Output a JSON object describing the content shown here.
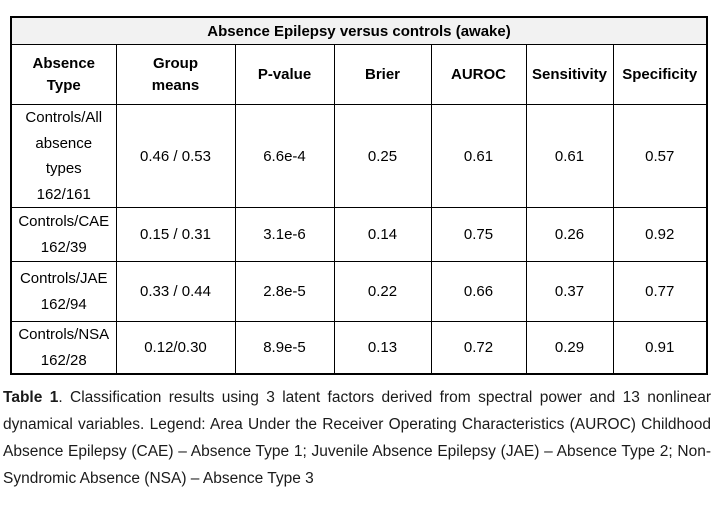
{
  "table": {
    "title": "Absence Epilepsy versus controls (awake)",
    "columns": [
      {
        "lines": [
          "Absence",
          "Type"
        ]
      },
      {
        "lines": [
          "Group",
          "means"
        ]
      },
      {
        "lines": [
          "P-value"
        ]
      },
      {
        "lines": [
          "Brier"
        ]
      },
      {
        "lines": [
          "AUROC"
        ]
      },
      {
        "lines": [
          "Sensitivity"
        ]
      },
      {
        "lines": [
          "Specificity"
        ]
      }
    ],
    "rows": [
      {
        "group": "Controls/All absence types",
        "counts": "162/161",
        "group_means": "0.46 / 0.53",
        "p_value": "6.6e-4",
        "brier": "0.25",
        "auroc": "0.61",
        "sensitivity": "0.61",
        "specificity": "0.57"
      },
      {
        "group": "Controls/CAE",
        "counts": "162/39",
        "group_means": "0.15 / 0.31",
        "p_value": "3.1e-6",
        "brier": "0.14",
        "auroc": "0.75",
        "sensitivity": "0.26",
        "specificity": "0.92"
      },
      {
        "group": "Controls/JAE",
        "counts": "162/94",
        "group_means": "0.33 / 0.44",
        "p_value": "2.8e-5",
        "brier": "0.22",
        "auroc": "0.66",
        "sensitivity": "0.37",
        "specificity": "0.77"
      },
      {
        "group": "Controls/NSA",
        "counts": "162/28",
        "group_means": "0.12/0.30",
        "p_value": "8.9e-5",
        "brier": "0.13",
        "auroc": "0.72",
        "sensitivity": "0.29",
        "specificity": "0.91"
      }
    ]
  },
  "caption": {
    "label": "Table 1",
    "text": ". Classification results using 3 latent factors derived from spectral power and 13 nonlinear dynamical variables. Legend: Area Under the Receiver Operating Characteristics (AUROC) Childhood Absence Epilepsy (CAE) – Absence Type 1; Juvenile Absence Epilepsy (JAE) – Absence Type 2; Non-Syndromic Absence (NSA) – Absence Type 3"
  }
}
